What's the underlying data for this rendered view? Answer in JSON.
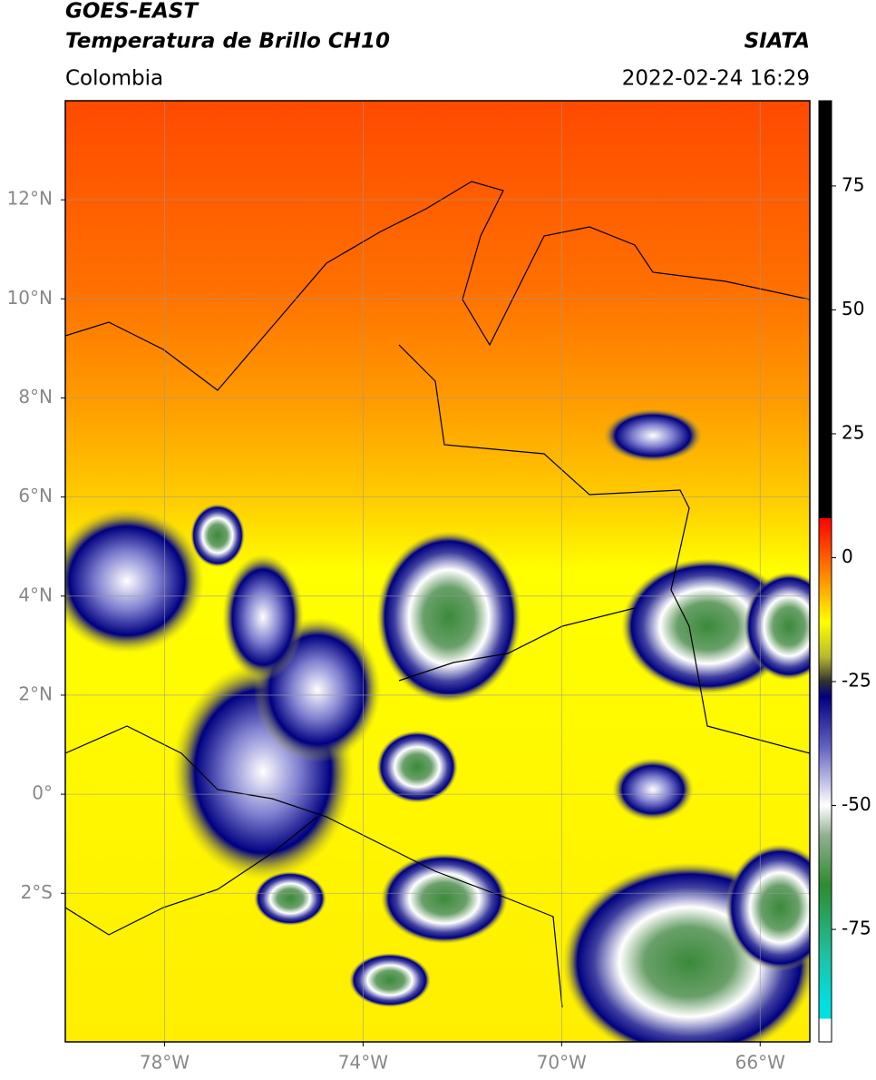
{
  "header": {
    "title": "GOES-EAST",
    "subtitle": "Temperatura de Brillo CH10",
    "source": "SIATA",
    "region": "Colombia",
    "datetime": "2022-02-24 16:29"
  },
  "map": {
    "xlim": [
      -80,
      -65
    ],
    "ylim": [
      -5,
      14
    ],
    "lon_ticks": [
      {
        "value": -78,
        "label": "78°W"
      },
      {
        "value": -74,
        "label": "74°W"
      },
      {
        "value": -70,
        "label": "70°W"
      },
      {
        "value": -66,
        "label": "66°W"
      }
    ],
    "lat_ticks": [
      {
        "value": 12,
        "label": "12°N"
      },
      {
        "value": 10,
        "label": "10°N"
      },
      {
        "value": 8,
        "label": "8°N"
      },
      {
        "value": 6,
        "label": "6°N"
      },
      {
        "value": 4,
        "label": "4°N"
      },
      {
        "value": 2,
        "label": "2°N"
      },
      {
        "value": 0,
        "label": "0°"
      },
      {
        "value": -2,
        "label": "2°S"
      }
    ],
    "grid": true
  },
  "colorbar": {
    "lim": [
      -97.7,
      92.2
    ],
    "ticks": [
      75,
      50,
      25,
      0,
      -25,
      -50,
      -75
    ],
    "colors": [
      {
        "value": 92.2,
        "color": "#000000"
      },
      {
        "value": 8,
        "color": "#000000"
      },
      {
        "value": 8,
        "color": "#ff0000"
      },
      {
        "value": -5,
        "color": "#ff9900"
      },
      {
        "value": -13,
        "color": "#ffff00"
      },
      {
        "value": -20,
        "color": "#b8b830"
      },
      {
        "value": -25,
        "color": "#303030"
      },
      {
        "value": -28,
        "color": "#000080"
      },
      {
        "value": -38,
        "color": "#6060c0"
      },
      {
        "value": -50,
        "color": "#ffffff"
      },
      {
        "value": -56,
        "color": "#90b090"
      },
      {
        "value": -66,
        "color": "#2e8b2e"
      },
      {
        "value": -80,
        "color": "#20c0a0"
      },
      {
        "value": -90,
        "color": "#00e0e0"
      },
      {
        "value": -93,
        "color": "#00e0e0"
      },
      {
        "value": -93,
        "color": "#ffffff"
      },
      {
        "value": -97.7,
        "color": "#ffffff"
      }
    ]
  }
}
